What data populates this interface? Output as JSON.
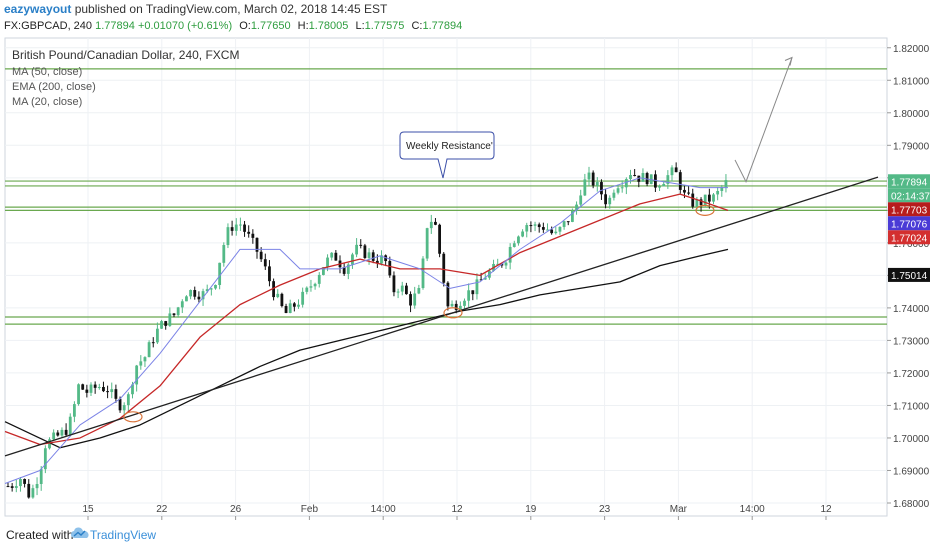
{
  "header": {
    "author": "eazywayout",
    "published": "published on TradingView.com, March 02, 2018 14:45 EST"
  },
  "info": {
    "symbol": "FX:GBPCAD, 240",
    "last": "1.77894",
    "change": "+0.01070 (+0.61%)",
    "open_label": "O:",
    "open": "1.77650",
    "high_label": "H:",
    "high": "1.78005",
    "low_label": "L:",
    "low": "1.77575",
    "close_label": "C:",
    "close": "1.77894"
  },
  "legend": {
    "title": "British Pound/Canadian Dollar, 240, FXCM",
    "items": [
      "MA (50, close)",
      "EMA (200, close)",
      "MA (20, close)"
    ]
  },
  "annotation": {
    "text": "Weekly Resistance'"
  },
  "footer": {
    "created": "Created with",
    "brand": "TradingView"
  },
  "colors": {
    "up": "#53b987",
    "down": "#111111",
    "ma50": "#c62828",
    "ema200": "#111111",
    "ma20": "#7b83e6",
    "level": "#6aa84f",
    "trend": "#222222",
    "arrow": "#888888",
    "circle": "#d9733a"
  },
  "chart_data": {
    "type": "candlestick",
    "symbol": "GBPCAD",
    "ylim": [
      1.676,
      1.823
    ],
    "y_ticks": [
      "1.82000",
      "1.81000",
      "1.80000",
      "1.79000",
      "1.78000",
      "1.77000",
      "1.76000",
      "1.75000",
      "1.74000",
      "1.73000",
      "1.72000",
      "1.71000",
      "1.70000",
      "1.69000",
      "1.68000"
    ],
    "x_ticks": [
      "15",
      "22",
      "26",
      "Feb",
      "14:00",
      "12",
      "19",
      "23",
      "Mar",
      "14:00",
      "12"
    ],
    "price_labels": [
      {
        "text": "1.77894",
        "value": 1.77894,
        "color": "#53b987"
      },
      {
        "text": "02:14:37",
        "value": 1.7758,
        "color": "#53b987"
      },
      {
        "text": "1.77703",
        "value": 1.77703,
        "color": "#b71c1c"
      },
      {
        "text": "1.77076",
        "value": 1.77076,
        "color": "#4a3bd6"
      },
      {
        "text": "1.77024",
        "value": 1.77024,
        "color": "#d32f2f"
      },
      {
        "text": "1.75014",
        "value": 1.75014,
        "color": "#111111"
      }
    ],
    "horizontal_levels": [
      1.8135,
      1.779,
      1.7775,
      1.771,
      1.77,
      1.7372,
      1.735
    ],
    "close_path": [
      [
        0,
        1.686
      ],
      [
        10,
        1.685
      ],
      [
        20,
        1.688
      ],
      [
        30,
        1.682
      ],
      [
        40,
        1.69
      ],
      [
        45,
        1.698
      ],
      [
        55,
        1.7
      ],
      [
        65,
        1.702
      ],
      [
        72,
        1.706
      ],
      [
        78,
        1.716
      ],
      [
        88,
        1.714
      ],
      [
        98,
        1.716
      ],
      [
        108,
        1.715
      ],
      [
        118,
        1.71
      ],
      [
        128,
        1.712
      ],
      [
        135,
        1.722
      ],
      [
        145,
        1.725
      ],
      [
        155,
        1.732
      ],
      [
        165,
        1.736
      ],
      [
        175,
        1.738
      ],
      [
        185,
        1.745
      ],
      [
        195,
        1.745
      ],
      [
        205,
        1.744
      ],
      [
        215,
        1.748
      ],
      [
        222,
        1.758
      ],
      [
        230,
        1.765
      ],
      [
        240,
        1.766
      ],
      [
        248,
        1.762
      ],
      [
        258,
        1.757
      ],
      [
        265,
        1.752
      ],
      [
        275,
        1.744
      ],
      [
        285,
        1.738
      ],
      [
        295,
        1.741
      ],
      [
        305,
        1.744
      ],
      [
        315,
        1.749
      ],
      [
        325,
        1.754
      ],
      [
        335,
        1.756
      ],
      [
        345,
        1.752
      ],
      [
        355,
        1.758
      ],
      [
        365,
        1.757
      ],
      [
        375,
        1.755
      ],
      [
        385,
        1.755
      ],
      [
        392,
        1.745
      ],
      [
        400,
        1.747
      ],
      [
        410,
        1.742
      ],
      [
        420,
        1.745
      ],
      [
        428,
        1.768
      ],
      [
        435,
        1.766
      ],
      [
        442,
        1.752
      ],
      [
        448,
        1.74
      ],
      [
        455,
        1.741
      ],
      [
        465,
        1.744
      ],
      [
        475,
        1.746
      ],
      [
        485,
        1.75
      ],
      [
        495,
        1.752
      ],
      [
        505,
        1.755
      ],
      [
        515,
        1.762
      ],
      [
        525,
        1.766
      ],
      [
        535,
        1.765
      ],
      [
        545,
        1.765
      ],
      [
        555,
        1.762
      ],
      [
        565,
        1.766
      ],
      [
        575,
        1.77
      ],
      [
        582,
        1.778
      ],
      [
        590,
        1.78
      ],
      [
        600,
        1.776
      ],
      [
        608,
        1.772
      ],
      [
        615,
        1.778
      ],
      [
        622,
        1.779
      ],
      [
        630,
        1.782
      ],
      [
        640,
        1.78
      ],
      [
        648,
        1.78
      ],
      [
        655,
        1.778
      ],
      [
        665,
        1.78
      ],
      [
        675,
        1.782
      ],
      [
        685,
        1.774
      ],
      [
        695,
        1.772
      ],
      [
        705,
        1.773
      ],
      [
        715,
        1.774
      ],
      [
        722,
        1.777
      ],
      [
        728,
        1.779
      ]
    ],
    "ma50_path": [
      [
        5,
        1.702
      ],
      [
        40,
        1.698
      ],
      [
        80,
        1.7
      ],
      [
        120,
        1.706
      ],
      [
        160,
        1.716
      ],
      [
        200,
        1.731
      ],
      [
        240,
        1.741
      ],
      [
        280,
        1.747
      ],
      [
        320,
        1.752
      ],
      [
        360,
        1.755
      ],
      [
        400,
        1.752
      ],
      [
        440,
        1.752
      ],
      [
        480,
        1.75
      ],
      [
        520,
        1.757
      ],
      [
        560,
        1.762
      ],
      [
        600,
        1.767
      ],
      [
        640,
        1.772
      ],
      [
        680,
        1.775
      ],
      [
        700,
        1.773
      ],
      [
        728,
        1.77
      ]
    ],
    "ma20_path": [
      [
        5,
        1.686
      ],
      [
        40,
        1.69
      ],
      [
        80,
        1.704
      ],
      [
        120,
        1.712
      ],
      [
        160,
        1.726
      ],
      [
        200,
        1.742
      ],
      [
        240,
        1.758
      ],
      [
        280,
        1.758
      ],
      [
        300,
        1.752
      ],
      [
        340,
        1.752
      ],
      [
        380,
        1.756
      ],
      [
        420,
        1.752
      ],
      [
        450,
        1.746
      ],
      [
        480,
        1.748
      ],
      [
        520,
        1.758
      ],
      [
        560,
        1.766
      ],
      [
        600,
        1.776
      ],
      [
        640,
        1.78
      ],
      [
        680,
        1.778
      ],
      [
        700,
        1.777
      ],
      [
        728,
        1.777
      ]
    ],
    "ema200_path": [
      [
        5,
        1.705
      ],
      [
        60,
        1.697
      ],
      [
        100,
        1.7
      ],
      [
        140,
        1.704
      ],
      [
        180,
        1.71
      ],
      [
        220,
        1.716
      ],
      [
        260,
        1.722
      ],
      [
        300,
        1.727
      ],
      [
        340,
        1.73
      ],
      [
        380,
        1.733
      ],
      [
        420,
        1.736
      ],
      [
        460,
        1.739
      ],
      [
        500,
        1.741
      ],
      [
        540,
        1.744
      ],
      [
        580,
        1.746
      ],
      [
        620,
        1.748
      ],
      [
        660,
        1.753
      ],
      [
        700,
        1.756
      ],
      [
        728,
        1.758
      ]
    ],
    "trendline": [
      [
        5,
        1.6945
      ],
      [
        878,
        1.7802
      ]
    ],
    "forecast_arrow": [
      [
        735,
        1.7855
      ],
      [
        746,
        1.7788
      ],
      [
        792,
        1.817
      ]
    ],
    "circles": [
      [
        133,
        1.7065
      ],
      [
        453,
        1.7385
      ],
      [
        705,
        1.77
      ]
    ]
  }
}
